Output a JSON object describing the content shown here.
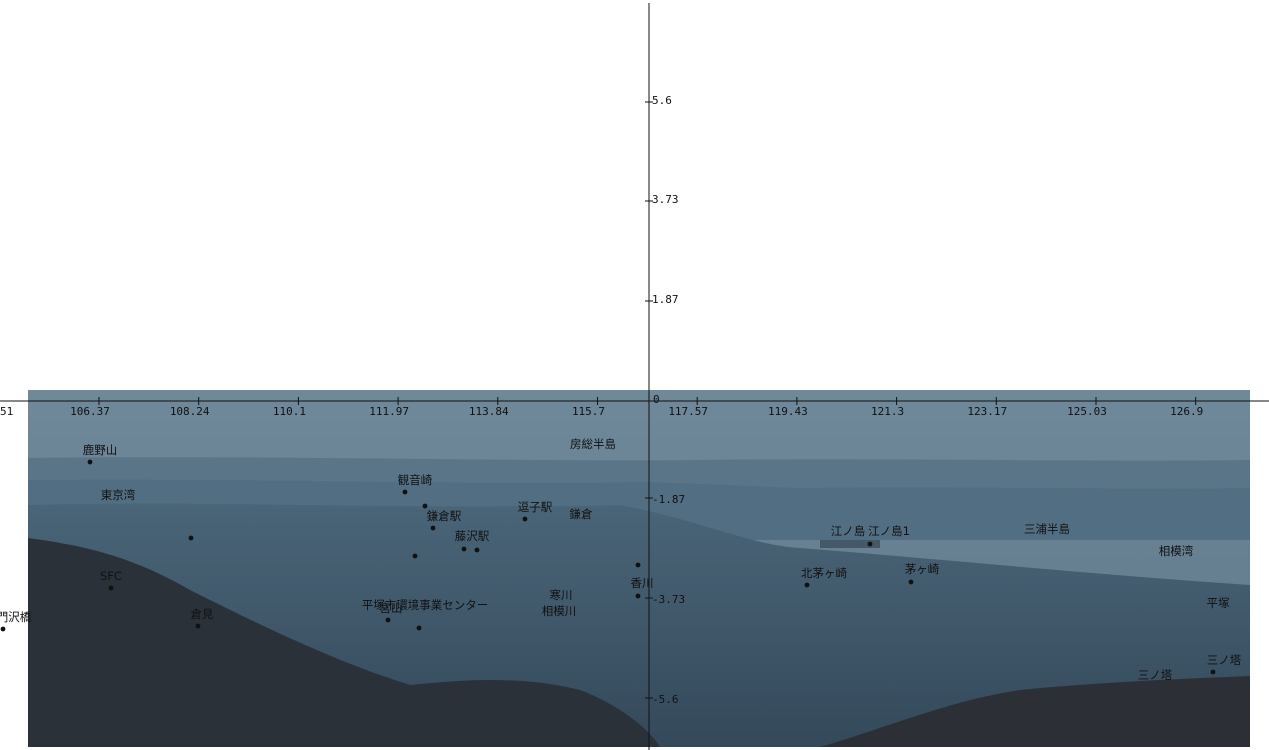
{
  "photo": {
    "sky_top": "#6d8799",
    "sky_bottom": "#5f7a8c",
    "sea": "#4f6b7e",
    "land": "#3e586b",
    "mountain": "#2a2f36"
  },
  "axes": {
    "x_ticks": [
      "106.37",
      "108.24",
      "110.1",
      "111.97",
      "113.84",
      "115.7",
      "117.57",
      "119.43",
      "121.3",
      "123.17",
      "125.03",
      "126.9"
    ],
    "x_tick_partial_left": "51",
    "origin_label": "0",
    "y_ticks_positive": [
      "5.6",
      "3.73",
      "1.87"
    ],
    "y_ticks_negative": [
      "-1.87",
      "-3.73",
      "-5.6"
    ]
  },
  "places": [
    {
      "label": "鹿野山"
    },
    {
      "label": "東京湾"
    },
    {
      "label": "観音崎"
    },
    {
      "label": "鎌倉駅"
    },
    {
      "label": "藤沢駅"
    },
    {
      "label": "逗子駅"
    },
    {
      "label": "鎌倉"
    },
    {
      "label": "房総半島"
    },
    {
      "label": "SFC"
    },
    {
      "label": "倉見"
    },
    {
      "label": "門沢橋"
    },
    {
      "label": "平塚市環境事業センター"
    },
    {
      "label": "宮山"
    },
    {
      "label": "寒川"
    },
    {
      "label": "相模川"
    },
    {
      "label": "香川"
    },
    {
      "label": "江ノ島"
    },
    {
      "label": "江ノ島1"
    },
    {
      "label": "北茅ヶ崎"
    },
    {
      "label": "茅ヶ崎"
    },
    {
      "label": "三浦半島"
    },
    {
      "label": "相模湾"
    },
    {
      "label": "平塚"
    },
    {
      "label": "三ノ塔"
    },
    {
      "label": "三ノ塔"
    }
  ]
}
